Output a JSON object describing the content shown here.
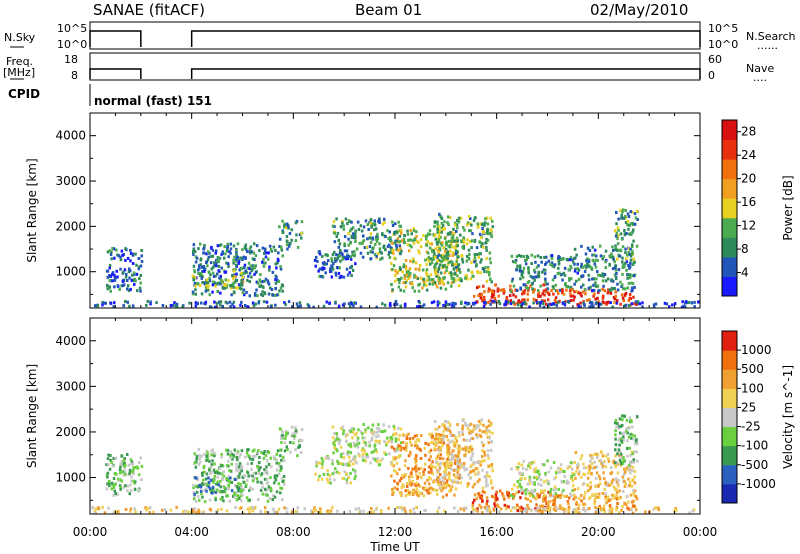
{
  "header": {
    "left": "SANAE (fitACF)",
    "center": "Beam 01",
    "right": "02/May/2010"
  },
  "strip_nsky": {
    "left_label": "N.Sky",
    "left_ticks": [
      "10^5",
      "10^0"
    ],
    "right_ticks": [
      "10^5",
      "10^0"
    ],
    "right_label": "N.Search",
    "right_dots": "......"
  },
  "strip_freq": {
    "left_label_1": "Freq.",
    "left_label_2": "[MHz]",
    "left_ticks": [
      "18",
      "8"
    ],
    "right_ticks": [
      "60",
      "0"
    ],
    "right_label": "Nave",
    "right_dots": "...."
  },
  "cpid": {
    "label": "CPID",
    "text": "normal (fast) 151"
  },
  "operation_segments": [
    {
      "start_h": 0.0,
      "end_h": 2.0
    },
    {
      "start_h": 4.0,
      "end_h": 24.0
    }
  ],
  "colors": {
    "power_scale": [
      "#1a1aff",
      "#2255b8",
      "#2e8a5a",
      "#4caa50",
      "#e8d020",
      "#f0a020",
      "#f07010",
      "#e83010",
      "#d81010"
    ],
    "velocity_scale": [
      "#1a2ab0",
      "#2a60c0",
      "#3a9a50",
      "#6ad040",
      "#c8c8c8",
      "#f0d050",
      "#f0a030",
      "#f07010",
      "#e02010"
    ]
  },
  "chart_data": [
    {
      "type": "heatmap",
      "name": "power",
      "ylabel": "Slant Range [km]",
      "ylim": [
        200,
        4500
      ],
      "yticks": [
        "4000",
        "3000",
        "2000",
        "1000"
      ],
      "xlim": [
        0,
        24
      ],
      "colorbar_label": "Power [dB]",
      "colorbar_ticks": [
        "28",
        "24",
        "20",
        "16",
        "12",
        "8",
        "4"
      ],
      "colorbar_range": [
        0,
        30
      ]
    },
    {
      "type": "heatmap",
      "name": "velocity",
      "ylabel": "Slant Range [km]",
      "ylim": [
        200,
        4500
      ],
      "yticks": [
        "4000",
        "3000",
        "2000",
        "1000"
      ],
      "xlim": [
        0,
        24
      ],
      "xlabel": "Time UT",
      "xticks": [
        "00:00",
        "04:00",
        "08:00",
        "12:00",
        "16:00",
        "20:00",
        "00:00"
      ],
      "colorbar_label": "Velocity [m s^-1]",
      "colorbar_ticks": [
        "1000",
        "500",
        "100",
        "25",
        "-25",
        "-100",
        "-500",
        "-1000"
      ]
    }
  ],
  "echo_regions": [
    {
      "t0": 0.6,
      "t1": 2.0,
      "r0": 600,
      "r1": 1550,
      "pval": 6,
      "vcat": 3
    },
    {
      "t0": 4.0,
      "t1": 7.6,
      "r0": 500,
      "r1": 1650,
      "pval": 7,
      "vcat": 3
    },
    {
      "t0": 4.0,
      "t1": 6.0,
      "r0": 650,
      "r1": 1050,
      "pval": 13,
      "vcat": 2
    },
    {
      "t0": 7.4,
      "t1": 8.3,
      "r0": 1500,
      "r1": 2150,
      "pval": 9,
      "vcat": 3
    },
    {
      "t0": 8.8,
      "t1": 10.4,
      "r0": 900,
      "r1": 1500,
      "pval": 6,
      "vcat": 4
    },
    {
      "t0": 9.5,
      "t1": 12.2,
      "r0": 1300,
      "r1": 2200,
      "pval": 9,
      "vcat": 4
    },
    {
      "t0": 11.8,
      "t1": 14.5,
      "r0": 600,
      "r1": 2000,
      "pval": 14,
      "vcat": 6
    },
    {
      "t0": 13.5,
      "t1": 15.8,
      "r0": 800,
      "r1": 2300,
      "pval": 11,
      "vcat": 5
    },
    {
      "t0": 15.0,
      "t1": 18.0,
      "r0": 300,
      "r1": 750,
      "pval": 25,
      "vcat": 7
    },
    {
      "t0": 16.5,
      "t1": 19.0,
      "r0": 600,
      "r1": 1400,
      "pval": 8,
      "vcat": 4
    },
    {
      "t0": 17.5,
      "t1": 21.5,
      "r0": 300,
      "r1": 650,
      "pval": 24,
      "vcat": 6
    },
    {
      "t0": 19.0,
      "t1": 21.4,
      "r0": 600,
      "r1": 1600,
      "pval": 8,
      "vcat": 5
    },
    {
      "t0": 20.6,
      "t1": 21.5,
      "r0": 1300,
      "r1": 2400,
      "pval": 10,
      "vcat": 3
    },
    {
      "t0": 0.0,
      "t1": 24.0,
      "r0": 250,
      "r1": 380,
      "pval": 5,
      "vcat": 5
    }
  ]
}
